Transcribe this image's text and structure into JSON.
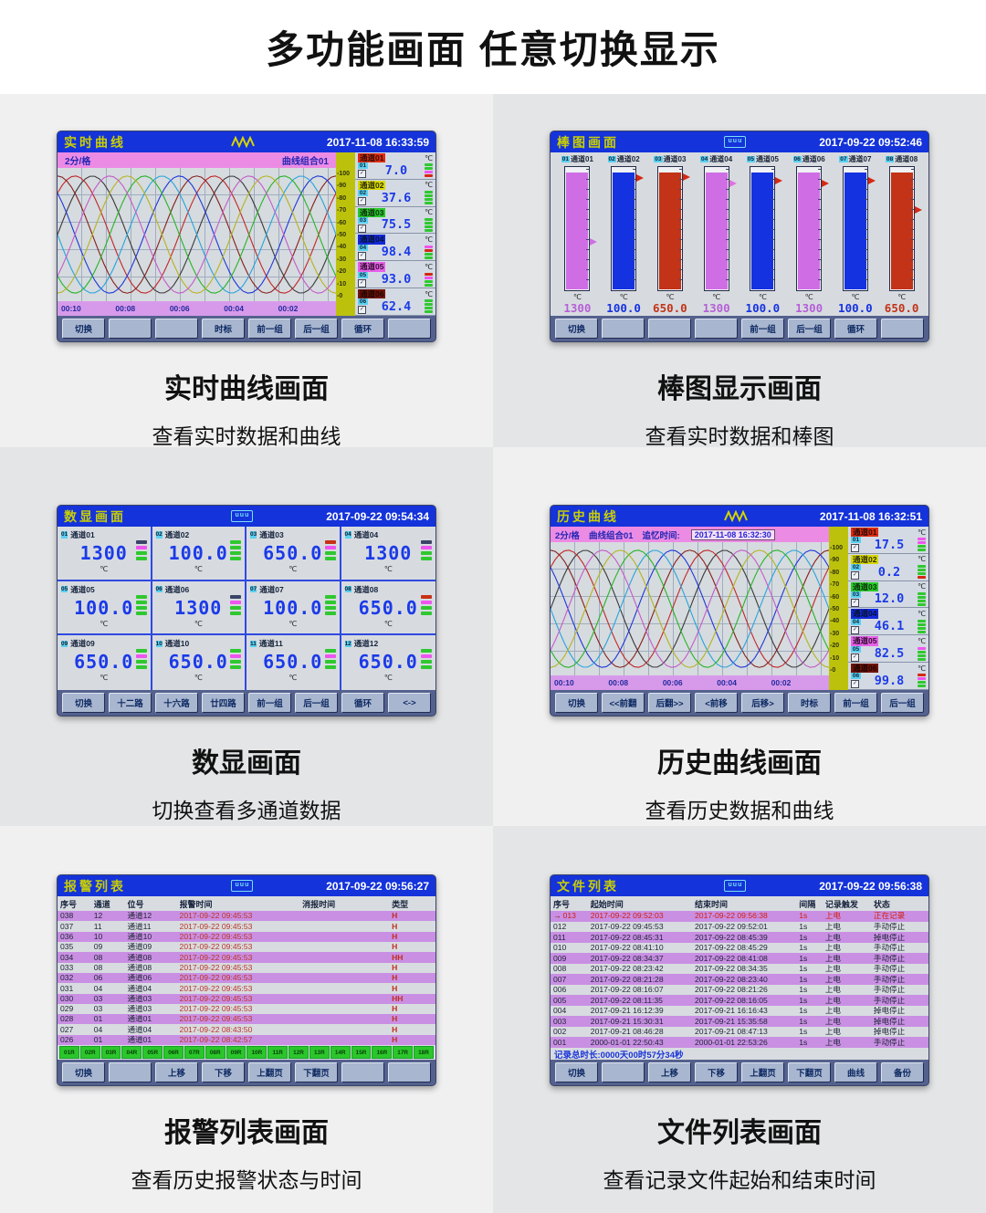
{
  "page": {
    "title": "多功能画面  任意切换显示"
  },
  "units": {
    "temp": "℃"
  },
  "icons": {
    "check": "✓",
    "row_arrow": "→",
    "screen_glyph": "uuu"
  },
  "curve_colors": [
    "#3a3a3a",
    "#c02828",
    "#86201c",
    "#2038d8",
    "#28a4dc",
    "#28b428",
    "#b4b420",
    "#c45cc8"
  ],
  "chart_data": [
    {
      "type": "line",
      "title": "实时曲线",
      "note": "8 sine-like channel traces, 2min/div",
      "x_ticks": [
        "00:10",
        "00:08",
        "00:06",
        "00:04",
        "00:02"
      ],
      "y_ticks": [
        100,
        90,
        80,
        70,
        60,
        50,
        40,
        30,
        20,
        10,
        0
      ]
    },
    {
      "type": "bar",
      "categories": [
        "通道01",
        "通道02",
        "通道03",
        "通道04",
        "通道05",
        "通道06",
        "通道07",
        "通道08"
      ],
      "values": [
        1300,
        100.0,
        650.0,
        1300,
        100.0,
        1300,
        100.0,
        650.0
      ],
      "title": "棒图画面",
      "ylabel": "℃"
    },
    {
      "type": "line",
      "title": "历史曲线",
      "note": "8 sine-like channel traces, 2min/div",
      "x_ticks": [
        "00:10",
        "00:08",
        "00:06",
        "00:04",
        "00:02"
      ],
      "y_ticks": [
        100,
        90,
        80,
        70,
        60,
        50,
        40,
        30,
        20,
        10,
        0
      ]
    }
  ],
  "panels": {
    "realtime": {
      "title": "实时曲线",
      "datetime": "2017-11-08 16:33:59",
      "sub_left": "2分/格",
      "sub_right": "曲线组合01",
      "time_labels": [
        "00:10",
        "00:08",
        "00:06",
        "00:04",
        "00:02"
      ],
      "scale_ticks": [
        "100",
        "90",
        "80",
        "70",
        "60",
        "50",
        "40",
        "30",
        "20",
        "10",
        "0"
      ],
      "channels": [
        {
          "num": "01",
          "name": "通道01",
          "value": "7.0",
          "chip": "#e02a10",
          "chip_text": "#2a1008",
          "leds": [
            "#2fc82f",
            "#2fc82f",
            "#ee55ee",
            "#d42814"
          ]
        },
        {
          "num": "02",
          "name": "通道02",
          "value": "37.6",
          "chip": "#d8d800",
          "chip_text": "#30300a",
          "leds": [
            "#2fc82f",
            "#2fc82f",
            "#2fc82f",
            "#2fc82f"
          ]
        },
        {
          "num": "03",
          "name": "通道03",
          "value": "75.5",
          "chip": "#28c828",
          "chip_text": "#103010",
          "leds": [
            "#2fc82f",
            "#2fc82f",
            "#2fc82f",
            "#2fc82f"
          ]
        },
        {
          "num": "04",
          "name": "通道04",
          "value": "98.4",
          "chip": "#1228d8",
          "chip_text": "#061430",
          "leds": [
            "#ee55ee",
            "#d42814",
            "#2fc82f",
            "#2fc82f"
          ]
        },
        {
          "num": "05",
          "name": "通道05",
          "value": "93.0",
          "chip": "#e860e8",
          "chip_text": "#301030",
          "leds": [
            "#d42814",
            "#ee55ee",
            "#2fc82f",
            "#2fc82f"
          ]
        },
        {
          "num": "06",
          "name": "通道06",
          "value": "62.4",
          "chip": "#701408",
          "chip_text": "#200402",
          "leds": [
            "#2fc82f",
            "#2fc82f",
            "#2fc82f",
            "#2fc82f"
          ]
        }
      ],
      "buttons": [
        "切换",
        "",
        "",
        "时标",
        "前一组",
        "后一组",
        "循环",
        ""
      ],
      "caption_title": "实时曲线画面",
      "caption_sub": "查看实时数据和曲线"
    },
    "bar": {
      "title": "棒图画面",
      "datetime": "2017-09-22 09:52:46",
      "channels": [
        {
          "num": "01",
          "name": "通道01",
          "value": "1300",
          "color": "#cf6ee4",
          "value_color": "#b65fd6",
          "flag": "#cf6ee4",
          "flag_top": 58,
          "fill": 95
        },
        {
          "num": "02",
          "name": "通道02",
          "value": "100.0",
          "color": "#1532e0",
          "value_color": "#1532e0",
          "flag": "#d42814",
          "flag_top": 6,
          "fill": 95
        },
        {
          "num": "03",
          "name": "通道03",
          "value": "650.0",
          "color": "#c23318",
          "value_color": "#c23318",
          "flag": "#d42814",
          "flag_top": 5,
          "fill": 95
        },
        {
          "num": "04",
          "name": "通道04",
          "value": "1300",
          "color": "#cf6ee4",
          "value_color": "#b65fd6",
          "flag": "#e070e0",
          "flag_top": 10,
          "fill": 95
        },
        {
          "num": "05",
          "name": "通道05",
          "value": "100.0",
          "color": "#1532e0",
          "value_color": "#1532e0",
          "flag": "#d42814",
          "flag_top": 8,
          "fill": 95
        },
        {
          "num": "06",
          "name": "通道06",
          "value": "1300",
          "color": "#cf6ee4",
          "value_color": "#b65fd6",
          "flag": "#d42814",
          "flag_top": 10,
          "fill": 95
        },
        {
          "num": "07",
          "name": "通道07",
          "value": "100.0",
          "color": "#1532e0",
          "value_color": "#1532e0",
          "flag": "#d42814",
          "flag_top": 8,
          "fill": 95
        },
        {
          "num": "08",
          "name": "通道08",
          "value": "650.0",
          "color": "#c23318",
          "value_color": "#c23318",
          "flag": "#d42814",
          "flag_top": 32,
          "fill": 95
        }
      ],
      "buttons": [
        "切换",
        "",
        "",
        "",
        "前一组",
        "后一组",
        "循环",
        ""
      ],
      "caption_title": "棒图显示画面",
      "caption_sub": "查看实时数据和棒图"
    },
    "digital": {
      "title": "数显画面",
      "datetime": "2017-09-22 09:54:34",
      "cells": [
        {
          "num": "01",
          "name": "通道01",
          "value": "1300",
          "leds": [
            "#3a4468",
            "#ee55ee",
            "#2fc82f",
            "#2fc82f"
          ]
        },
        {
          "num": "02",
          "name": "通道02",
          "value": "100.0",
          "leds": [
            "#2fc82f",
            "#2fc82f",
            "#2fc82f",
            "#2fc82f"
          ]
        },
        {
          "num": "03",
          "name": "通道03",
          "value": "650.0",
          "leds": [
            "#c83014",
            "#ee55ee",
            "#2fc82f",
            "#2fc82f"
          ]
        },
        {
          "num": "04",
          "name": "通道04",
          "value": "1300",
          "leds": [
            "#3a4468",
            "#ee55ee",
            "#2fc82f",
            "#2fc82f"
          ]
        },
        {
          "num": "05",
          "name": "通道05",
          "value": "100.0",
          "leds": [
            "#2fc82f",
            "#2fc82f",
            "#2fc82f",
            "#2fc82f"
          ]
        },
        {
          "num": "06",
          "name": "通道06",
          "value": "1300",
          "leds": [
            "#3a4468",
            "#ee55ee",
            "#2fc82f",
            "#2fc82f"
          ]
        },
        {
          "num": "07",
          "name": "通道07",
          "value": "100.0",
          "leds": [
            "#2fc82f",
            "#2fc82f",
            "#2fc82f",
            "#2fc82f"
          ]
        },
        {
          "num": "08",
          "name": "通道08",
          "value": "650.0",
          "leds": [
            "#c83014",
            "#ee55ee",
            "#2fc82f",
            "#2fc82f"
          ]
        },
        {
          "num": "09",
          "name": "通道09",
          "value": "650.0",
          "leds": [
            "#2fc82f",
            "#ee55ee",
            "#2fc82f",
            "#2fc82f"
          ]
        },
        {
          "num": "10",
          "name": "通道10",
          "value": "650.0",
          "leds": [
            "#2fc82f",
            "#ee55ee",
            "#2fc82f",
            "#2fc82f"
          ]
        },
        {
          "num": "11",
          "name": "通道11",
          "value": "650.0",
          "leds": [
            "#2fc82f",
            "#ee55ee",
            "#2fc82f",
            "#2fc82f"
          ]
        },
        {
          "num": "12",
          "name": "通道12",
          "value": "650.0",
          "leds": [
            "#2fc82f",
            "#ee55ee",
            "#2fc82f",
            "#2fc82f"
          ]
        }
      ],
      "buttons": [
        "切换",
        "十二路",
        "十六路",
        "廿四路",
        "前一组",
        "后一组",
        "循环",
        "<->"
      ],
      "caption_title": "数显画面",
      "caption_sub": "切换查看多通道数据"
    },
    "history": {
      "title": "历史曲线",
      "datetime": "2017-11-08 16:32:51",
      "sub_left": "2分/格",
      "sub_group": "曲线组合01",
      "recall_label": "追忆时间:",
      "recall_time": "2017-11-08 16:32:30",
      "time_labels": [
        "00:10",
        "00:08",
        "00:06",
        "00:04",
        "00:02"
      ],
      "scale_ticks": [
        "100",
        "90",
        "80",
        "70",
        "60",
        "50",
        "40",
        "30",
        "20",
        "10",
        "0"
      ],
      "channels": [
        {
          "num": "01",
          "name": "通道01",
          "value": "17.5",
          "chip": "#e02a10",
          "chip_text": "#2a1008",
          "leds": [
            "#ee55ee",
            "#ee55ee",
            "#2fc82f",
            "#2fc82f"
          ]
        },
        {
          "num": "02",
          "name": "通道02",
          "value": "0.2",
          "chip": "#d8d800",
          "chip_text": "#30300a",
          "leds": [
            "#2fc82f",
            "#2fc82f",
            "#2fc82f",
            "#d42814"
          ]
        },
        {
          "num": "03",
          "name": "通道03",
          "value": "12.0",
          "chip": "#28c828",
          "chip_text": "#103010",
          "leds": [
            "#2fc82f",
            "#2fc82f",
            "#2fc82f",
            "#2fc82f"
          ]
        },
        {
          "num": "04",
          "name": "通道04",
          "value": "46.1",
          "chip": "#1228d8",
          "chip_text": "#061430",
          "leds": [
            "#2fc82f",
            "#2fc82f",
            "#2fc82f",
            "#2fc82f"
          ]
        },
        {
          "num": "05",
          "name": "通道05",
          "value": "82.5",
          "chip": "#e860e8",
          "chip_text": "#301030",
          "leds": [
            "#ee55ee",
            "#2fc82f",
            "#2fc82f",
            "#2fc82f"
          ]
        },
        {
          "num": "06",
          "name": "通道06",
          "value": "99.8",
          "chip": "#701408",
          "chip_text": "#200402",
          "leds": [
            "#d42814",
            "#ee55ee",
            "#2fc82f",
            "#2fc82f"
          ]
        }
      ],
      "buttons": [
        "切换",
        "<<前翻",
        "后翻>>",
        "<前移",
        "后移>",
        "时标",
        "前一组",
        "后一组"
      ],
      "caption_title": "历史曲线画面",
      "caption_sub": "查看历史数据和曲线"
    },
    "alarm": {
      "title": "报警列表",
      "datetime": "2017-09-22 09:56:27",
      "columns": [
        "序号",
        "通道",
        "位号",
        "报警时间",
        "消报时间",
        "类型"
      ],
      "rows": [
        {
          "no": "038",
          "ch": "12",
          "tag": "通道12",
          "time": "2017-09-22 09:45:53",
          "clear": "",
          "type": "H"
        },
        {
          "no": "037",
          "ch": "11",
          "tag": "通道11",
          "time": "2017-09-22 09:45:53",
          "clear": "",
          "type": "H"
        },
        {
          "no": "036",
          "ch": "10",
          "tag": "通道10",
          "time": "2017-09-22 09:45:53",
          "clear": "",
          "type": "H"
        },
        {
          "no": "035",
          "ch": "09",
          "tag": "通道09",
          "time": "2017-09-22 09:45:53",
          "clear": "",
          "type": "H"
        },
        {
          "no": "034",
          "ch": "08",
          "tag": "通道08",
          "time": "2017-09-22 09:45:53",
          "clear": "",
          "type": "HH"
        },
        {
          "no": "033",
          "ch": "08",
          "tag": "通道08",
          "time": "2017-09-22 09:45:53",
          "clear": "",
          "type": "H"
        },
        {
          "no": "032",
          "ch": "06",
          "tag": "通道06",
          "time": "2017-09-22 09:45:53",
          "clear": "",
          "type": "H"
        },
        {
          "no": "031",
          "ch": "04",
          "tag": "通道04",
          "time": "2017-09-22 09:45:53",
          "clear": "",
          "type": "H"
        },
        {
          "no": "030",
          "ch": "03",
          "tag": "通道03",
          "time": "2017-09-22 09:45:53",
          "clear": "",
          "type": "HH"
        },
        {
          "no": "029",
          "ch": "03",
          "tag": "通道03",
          "time": "2017-09-22 09:45:53",
          "clear": "",
          "type": "H"
        },
        {
          "no": "028",
          "ch": "01",
          "tag": "通道01",
          "time": "2017-09-22 09:45:53",
          "clear": "",
          "type": "H"
        },
        {
          "no": "027",
          "ch": "04",
          "tag": "通道04",
          "time": "2017-09-22 08:43:50",
          "clear": "",
          "type": "H"
        },
        {
          "no": "026",
          "ch": "01",
          "tag": "通道01",
          "time": "2017-09-22 08:42:57",
          "clear": "",
          "type": "H"
        }
      ],
      "relays": [
        "01R",
        "02R",
        "03R",
        "04R",
        "05R",
        "06R",
        "07R",
        "08R",
        "09R",
        "10R",
        "11R",
        "12R",
        "13R",
        "14R",
        "15R",
        "16R",
        "17R",
        "18R"
      ],
      "buttons": [
        "切换",
        "",
        "上移",
        "下移",
        "上翻页",
        "下翻页",
        "",
        ""
      ],
      "caption_title": "报警列表画面",
      "caption_sub": "查看历史报警状态与时间"
    },
    "file": {
      "title": "文件列表",
      "datetime": "2017-09-22 09:56:38",
      "columns": [
        "序号",
        "起始时间",
        "结束时间",
        "间隔",
        "记录触发",
        "状态"
      ],
      "rows": [
        {
          "no": "013",
          "start": "2017-09-22 09:52:03",
          "end": "2017-09-22 09:56:38",
          "interval": "1s",
          "trigger": "上电",
          "status": "正在记录",
          "active": true
        },
        {
          "no": "012",
          "start": "2017-09-22 09:45:53",
          "end": "2017-09-22 09:52:01",
          "interval": "1s",
          "trigger": "上电",
          "status": "手动停止"
        },
        {
          "no": "011",
          "start": "2017-09-22 08:45:31",
          "end": "2017-09-22 08:45:39",
          "interval": "1s",
          "trigger": "上电",
          "status": "掉电停止"
        },
        {
          "no": "010",
          "start": "2017-09-22 08:41:10",
          "end": "2017-09-22 08:45:29",
          "interval": "1s",
          "trigger": "上电",
          "status": "手动停止"
        },
        {
          "no": "009",
          "start": "2017-09-22 08:34:37",
          "end": "2017-09-22 08:41:08",
          "interval": "1s",
          "trigger": "上电",
          "status": "手动停止"
        },
        {
          "no": "008",
          "start": "2017-09-22 08:23:42",
          "end": "2017-09-22 08:34:35",
          "interval": "1s",
          "trigger": "上电",
          "status": "手动停止"
        },
        {
          "no": "007",
          "start": "2017-09-22 08:21:28",
          "end": "2017-09-22 08:23:40",
          "interval": "1s",
          "trigger": "上电",
          "status": "手动停止"
        },
        {
          "no": "006",
          "start": "2017-09-22 08:16:07",
          "end": "2017-09-22 08:21:26",
          "interval": "1s",
          "trigger": "上电",
          "status": "手动停止"
        },
        {
          "no": "005",
          "start": "2017-09-22 08:11:35",
          "end": "2017-09-22 08:16:05",
          "interval": "1s",
          "trigger": "上电",
          "status": "手动停止"
        },
        {
          "no": "004",
          "start": "2017-09-21 16:12:39",
          "end": "2017-09-21 16:16:43",
          "interval": "1s",
          "trigger": "上电",
          "status": "掉电停止"
        },
        {
          "no": "003",
          "start": "2017-09-21 15:30:31",
          "end": "2017-09-21 15:35:58",
          "interval": "1s",
          "trigger": "上电",
          "status": "掉电停止"
        },
        {
          "no": "002",
          "start": "2017-09-21 08:46:28",
          "end": "2017-09-21 08:47:13",
          "interval": "1s",
          "trigger": "上电",
          "status": "掉电停止"
        },
        {
          "no": "001",
          "start": "2000-01-01 22:50:43",
          "end": "2000-01-01 22:53:26",
          "interval": "1s",
          "trigger": "上电",
          "status": "手动停止"
        }
      ],
      "footer": "记录总时长:0000天00时57分34秒",
      "buttons": [
        "切换",
        "",
        "上移",
        "下移",
        "上翻页",
        "下翻页",
        "曲线",
        "备份"
      ],
      "caption_title": "文件列表画面",
      "caption_sub": "查看记录文件起始和结束时间"
    }
  }
}
